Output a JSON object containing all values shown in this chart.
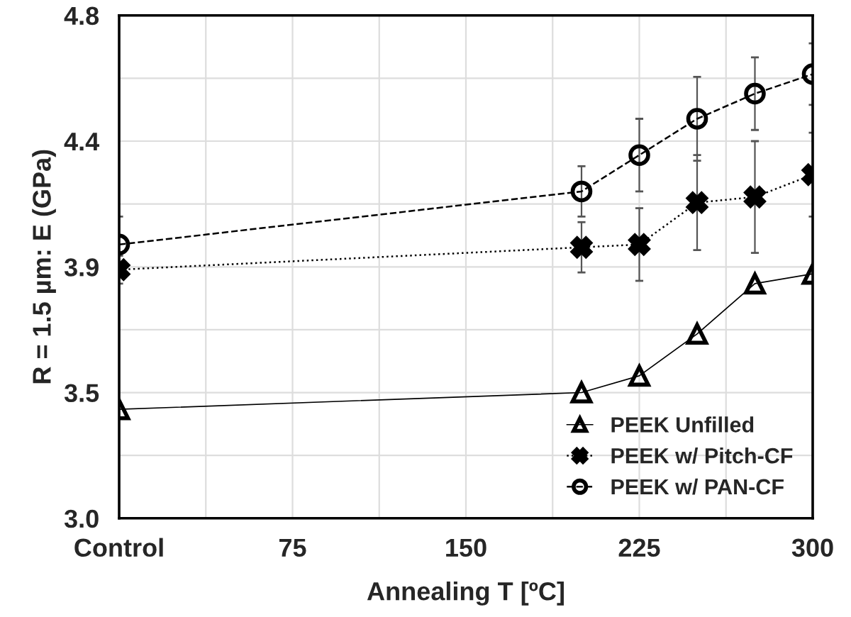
{
  "chart_data": {
    "type": "line",
    "xlabel": "Annealing T [ºC]",
    "ylabel": "R = 1.5 µm: E (GPa)",
    "x": [
      0,
      200,
      225,
      250,
      275,
      300
    ],
    "xlim": [
      0,
      300
    ],
    "xticks": [
      {
        "value": 0,
        "label": "Control"
      },
      {
        "value": 37.5,
        "label": null
      },
      75,
      {
        "value": 112.5,
        "label": null
      },
      150,
      {
        "value": 187.5,
        "label": null
      },
      225,
      {
        "value": 262.5,
        "label": null
      },
      300
    ],
    "ylim": [
      3.0,
      4.8
    ],
    "yticks": [
      {
        "value": 3.0,
        "label": "3.0"
      },
      {
        "value": 3.225,
        "label": null
      },
      {
        "value": 3.45,
        "label": "3.5"
      },
      {
        "value": 3.675,
        "label": null
      },
      3.9,
      {
        "value": 4.125,
        "label": null
      },
      {
        "value": 4.35,
        "label": "4.4"
      },
      {
        "value": 4.575,
        "label": null
      },
      4.8
    ],
    "grid": true,
    "legend": "bottom right",
    "series": [
      {
        "name": "PEEK Unfilled",
        "color": "#000000",
        "marker": "triangle",
        "line_style": "solid",
        "values": [
          3.39,
          3.45,
          3.51,
          3.66,
          3.84,
          3.875
        ]
      },
      {
        "name": "PEEK w/ Pitch-CF",
        "color": "#000000",
        "marker": "cross",
        "line_style": "dotted",
        "values": [
          3.89,
          3.97,
          3.98,
          4.13,
          4.15,
          4.23
        ],
        "errors": [
          0.05,
          0.09,
          0.13,
          0.17,
          0.2,
          0.15
        ]
      },
      {
        "name": "PEEK w/ PAN-CF",
        "color": "#000000",
        "marker": "circle",
        "line_style": "dashed",
        "values": [
          3.98,
          4.17,
          4.3,
          4.43,
          4.52,
          4.59
        ],
        "errors": [
          0.1,
          0.09,
          0.13,
          0.15,
          0.13,
          0.11
        ]
      }
    ]
  }
}
